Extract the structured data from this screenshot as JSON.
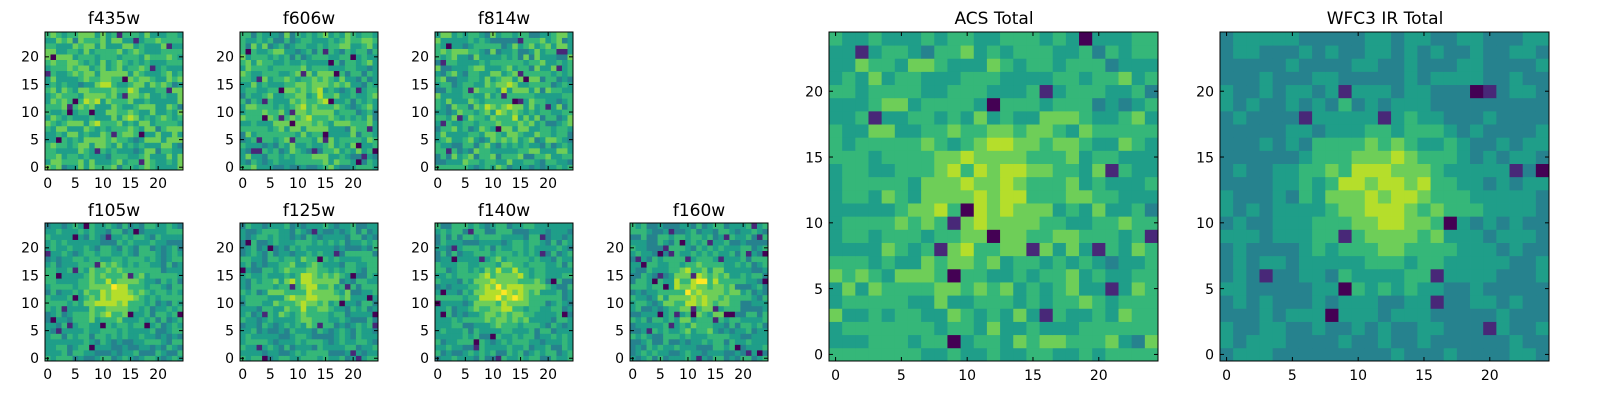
{
  "figure": {
    "background": "#ffffff"
  },
  "chart_data": [
    {
      "type": "heatmap",
      "title": "f435w",
      "grid": false,
      "xlim": [
        0,
        24
      ],
      "ylim": [
        0,
        24
      ],
      "xticks": [
        "0",
        "5",
        "10",
        "15",
        "20"
      ],
      "yticks": [
        "0",
        "5",
        "10",
        "15",
        "20"
      ],
      "colormap": "viridis",
      "pixels": 25
    },
    {
      "type": "heatmap",
      "title": "f606w",
      "grid": false,
      "xlim": [
        0,
        24
      ],
      "ylim": [
        0,
        24
      ],
      "xticks": [
        "0",
        "5",
        "10",
        "15",
        "20"
      ],
      "yticks": [
        "0",
        "5",
        "10",
        "15",
        "20"
      ],
      "colormap": "viridis",
      "pixels": 25
    },
    {
      "type": "heatmap",
      "title": "f814w",
      "grid": false,
      "xlim": [
        0,
        24
      ],
      "ylim": [
        0,
        24
      ],
      "xticks": [
        "0",
        "5",
        "10",
        "15",
        "20"
      ],
      "yticks": [
        "0",
        "5",
        "10",
        "15",
        "20"
      ],
      "colormap": "viridis",
      "pixels": 25
    },
    {
      "type": "heatmap",
      "title": "f105w",
      "grid": false,
      "xlim": [
        0,
        24
      ],
      "ylim": [
        0,
        24
      ],
      "xticks": [
        "0",
        "5",
        "10",
        "15",
        "20"
      ],
      "yticks": [
        "0",
        "5",
        "10",
        "15",
        "20"
      ],
      "colormap": "viridis",
      "pixels": 25
    },
    {
      "type": "heatmap",
      "title": "f125w",
      "grid": false,
      "xlim": [
        0,
        24
      ],
      "ylim": [
        0,
        24
      ],
      "xticks": [
        "0",
        "5",
        "10",
        "15",
        "20"
      ],
      "yticks": [
        "0",
        "5",
        "10",
        "15",
        "20"
      ],
      "colormap": "viridis",
      "pixels": 25
    },
    {
      "type": "heatmap",
      "title": "f140w",
      "grid": false,
      "xlim": [
        0,
        24
      ],
      "ylim": [
        0,
        24
      ],
      "xticks": [
        "0",
        "5",
        "10",
        "15",
        "20"
      ],
      "yticks": [
        "0",
        "5",
        "10",
        "15",
        "20"
      ],
      "colormap": "viridis",
      "pixels": 25
    },
    {
      "type": "heatmap",
      "title": "f160w",
      "grid": false,
      "xlim": [
        0,
        24
      ],
      "ylim": [
        0,
        24
      ],
      "xticks": [
        "0",
        "5",
        "10",
        "15",
        "20"
      ],
      "yticks": [
        "0",
        "5",
        "10",
        "15",
        "20"
      ],
      "colormap": "viridis",
      "pixels": 25
    },
    {
      "type": "heatmap",
      "title": "ACS Total",
      "grid": false,
      "xlim": [
        0,
        24
      ],
      "ylim": [
        0,
        24
      ],
      "xticks": [
        "0",
        "5",
        "10",
        "15",
        "20"
      ],
      "yticks": [
        "0",
        "5",
        "10",
        "15",
        "20"
      ],
      "colormap": "viridis",
      "pixels": 25
    },
    {
      "type": "heatmap",
      "title": "WFC3 IR Total",
      "grid": false,
      "xlim": [
        0,
        24
      ],
      "ylim": [
        0,
        24
      ],
      "xticks": [
        "0",
        "5",
        "10",
        "15",
        "20"
      ],
      "yticks": [
        "0",
        "5",
        "10",
        "15",
        "20"
      ],
      "colormap": "viridis",
      "pixels": 25
    }
  ]
}
